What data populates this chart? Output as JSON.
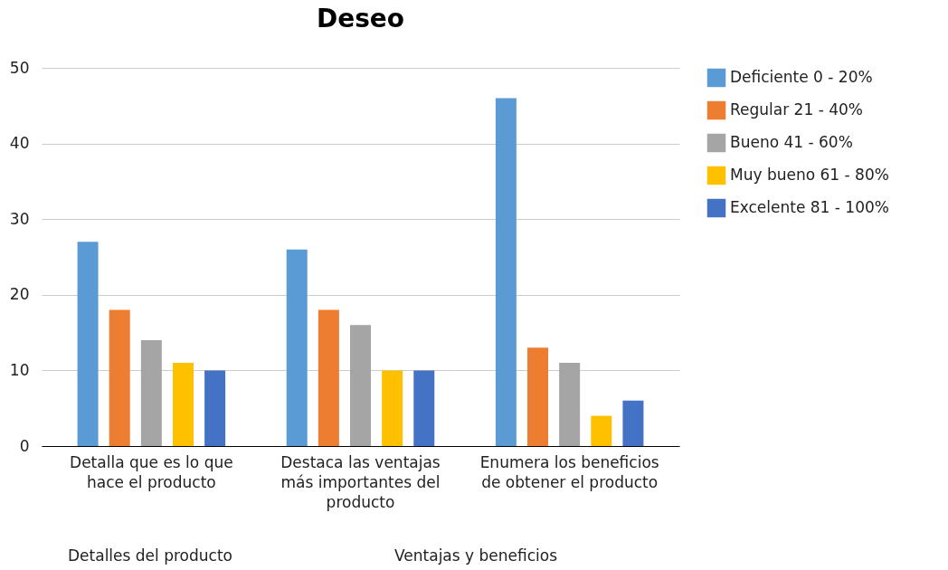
{
  "chart_data": {
    "type": "bar",
    "title": "Deseo",
    "categories": [
      "Detalla que es lo que hace el producto",
      "Destaca las ventajas más importantes del producto",
      "Enumera los beneficios de obtener el producto"
    ],
    "series": [
      {
        "name": "Deficiente 0 - 20%",
        "color": "#5b9bd5",
        "values": [
          27,
          26,
          46
        ]
      },
      {
        "name": "Regular 21 - 40%",
        "color": "#ed7d31",
        "values": [
          18,
          18,
          13
        ]
      },
      {
        "name": "Bueno 41 - 60%",
        "color": "#a5a5a5",
        "values": [
          14,
          16,
          11
        ]
      },
      {
        "name": "Muy bueno 61 - 80%",
        "color": "#ffc000",
        "values": [
          11,
          10,
          4
        ]
      },
      {
        "name": "Excelente 81 - 100%",
        "color": "#4472c4",
        "values": [
          10,
          10,
          6
        ]
      }
    ],
    "ylim": [
      0,
      50
    ],
    "yticks": [
      0,
      10,
      20,
      30,
      40,
      50
    ],
    "grid": "y",
    "legend": "right",
    "annotations": [
      "Detalles del producto",
      "Ventajas y beneficios"
    ]
  }
}
